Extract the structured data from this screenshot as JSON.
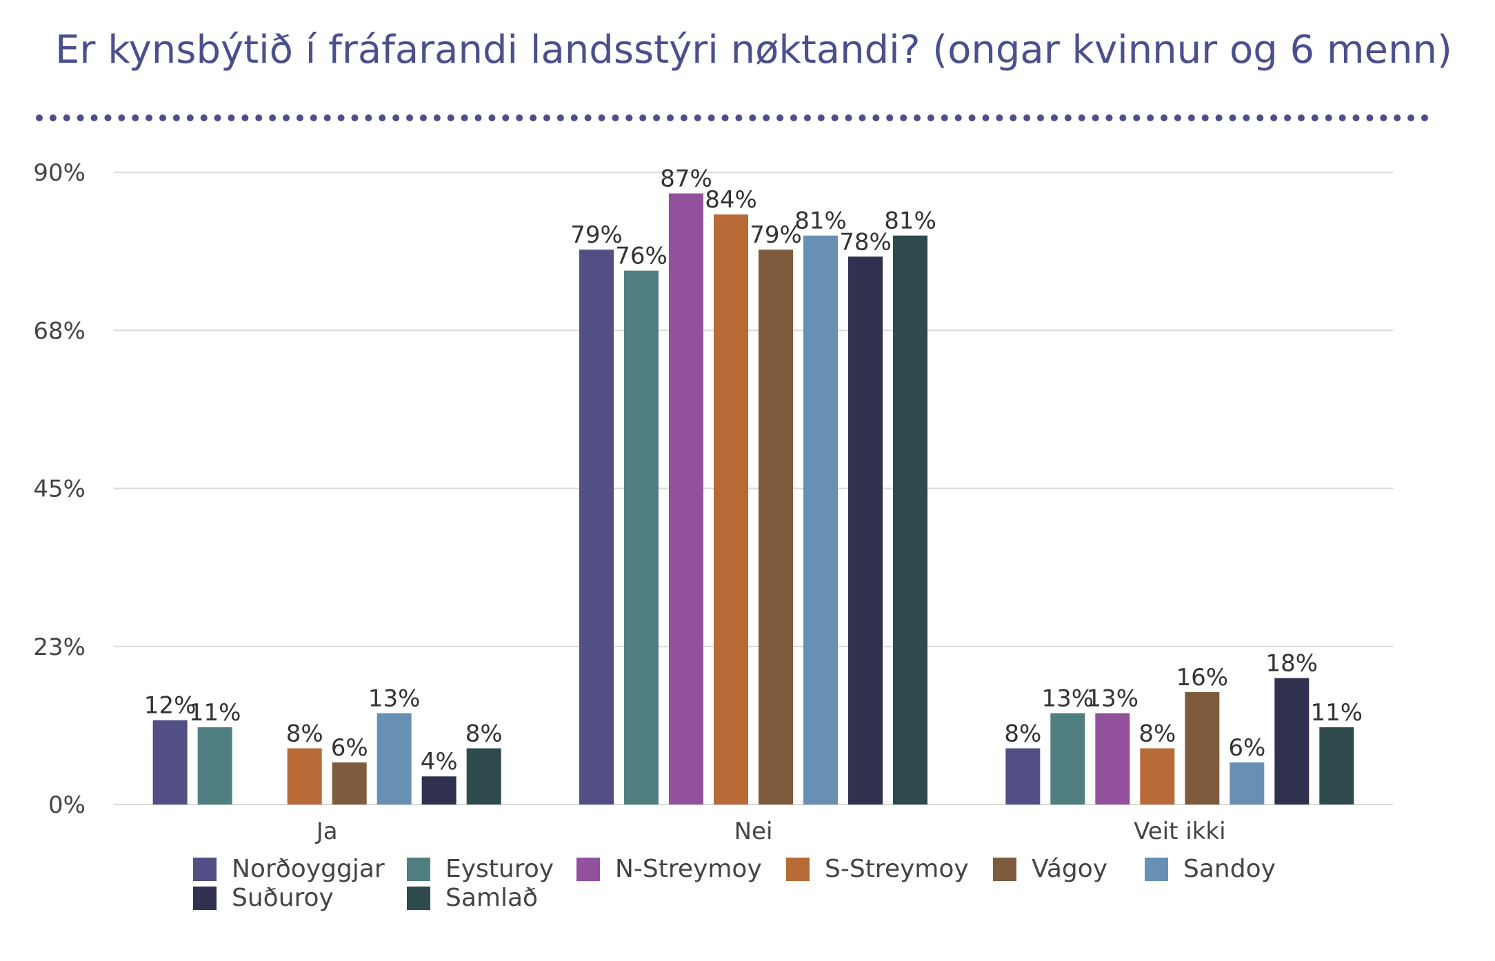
{
  "title": "Er kynsbýtið í fráfarandi landsstýri nøktandi? (ongar kvinnur og 6 menn)",
  "chart_data": {
    "type": "bar",
    "title": "Er kynsbýtið í fráfarandi landsstýri nøktandi? (ongar kvinnur og 6 menn)",
    "categories": [
      "Ja",
      "Nei",
      "Veit ikki"
    ],
    "ylim": [
      0,
      90
    ],
    "y_ticks": [
      "0%",
      "23%",
      "45%",
      "68%",
      "90%"
    ],
    "y_tick_values": [
      0,
      22.5,
      45,
      67.5,
      90
    ],
    "grid": true,
    "legend_position": "bottom",
    "series": [
      {
        "name": "Norðoyggjar",
        "color": "#524f84",
        "values": [
          12,
          79,
          8
        ],
        "labels": [
          "12%",
          "79%",
          "8%"
        ]
      },
      {
        "name": "Eysturoy",
        "color": "#4f7f81",
        "values": [
          11,
          76,
          13
        ],
        "labels": [
          "11%",
          "76%",
          "13%"
        ]
      },
      {
        "name": "N-Streymoy",
        "color": "#92519c",
        "values": [
          null,
          87,
          13
        ],
        "labels": [
          "",
          "87%",
          "13%"
        ]
      },
      {
        "name": "S-Streymoy",
        "color": "#b86a36",
        "values": [
          8,
          84,
          8
        ],
        "labels": [
          "8%",
          "84%",
          "8%"
        ]
      },
      {
        "name": "Vágoy",
        "color": "#7f5b3e",
        "values": [
          6,
          79,
          16
        ],
        "labels": [
          "6%",
          "79%",
          "16%"
        ]
      },
      {
        "name": "Sandoy",
        "color": "#6890b4",
        "values": [
          13,
          81,
          6
        ],
        "labels": [
          "13%",
          "81%",
          "6%"
        ]
      },
      {
        "name": "Suðuroy",
        "color": "#30304f",
        "values": [
          4,
          78,
          18
        ],
        "labels": [
          "4%",
          "78%",
          "18%"
        ]
      },
      {
        "name": "Samlað",
        "color": "#2e4a4d",
        "values": [
          8,
          81,
          11
        ],
        "labels": [
          "8%",
          "81%",
          "11%"
        ]
      }
    ]
  }
}
